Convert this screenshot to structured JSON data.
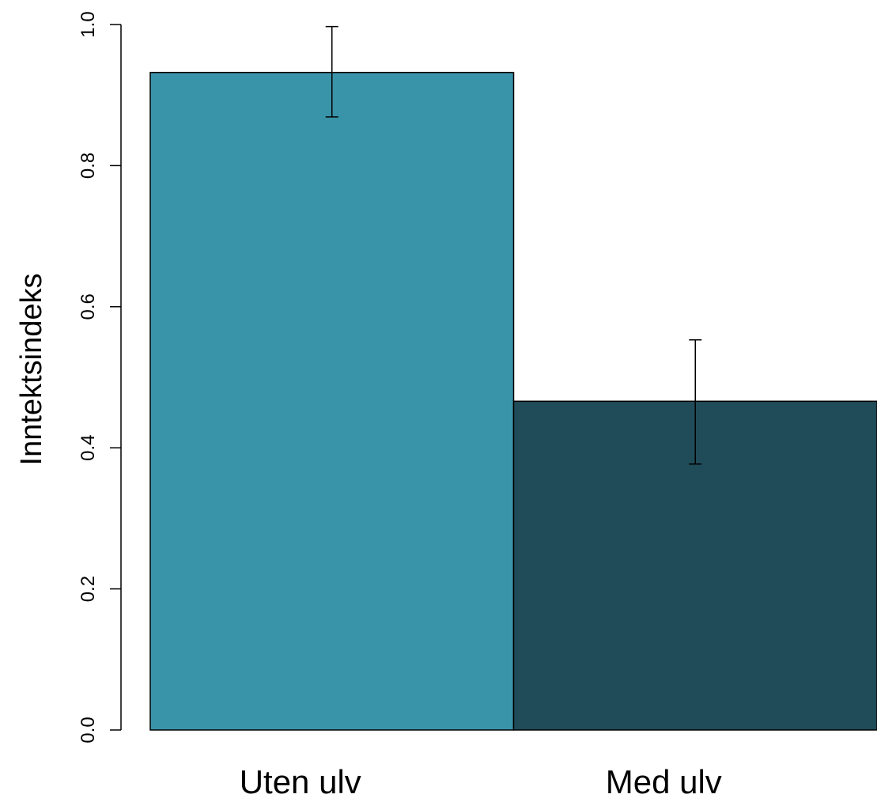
{
  "chart_data": {
    "type": "bar",
    "categories": [
      "Uten ulv",
      "Med ulv"
    ],
    "values": [
      0.932,
      0.466
    ],
    "error_bars": [
      {
        "low": 0.869,
        "high": 0.997
      },
      {
        "low": 0.377,
        "high": 0.553
      }
    ],
    "colors": [
      "#3A94A9",
      "#204B58"
    ],
    "ylabel": "Inntektsindeks",
    "xlabel": "",
    "ylim": [
      0,
      1.0
    ],
    "yticks": [
      0.0,
      0.2,
      0.4,
      0.6,
      0.8,
      1.0
    ],
    "ytick_labels": [
      "0.0",
      "0.2",
      "0.4",
      "0.6",
      "0.8",
      "1.0"
    ],
    "grid": false
  }
}
